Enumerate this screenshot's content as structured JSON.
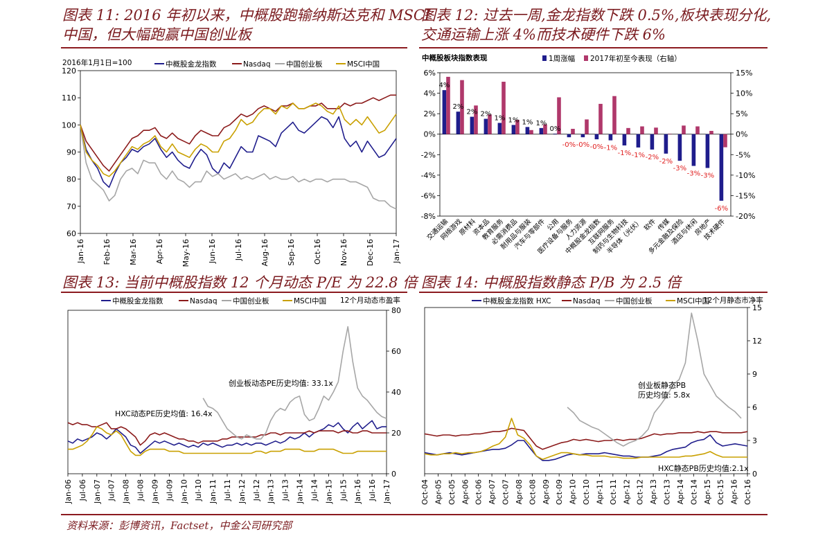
{
  "titles": {
    "fig11_l1": "图表 11: 2016 年初以来，中概股跑输纳斯达克和 MSCI",
    "fig11_l2": "中国，但大幅跑赢中国创业板",
    "fig12_l1": "图表 12: 过去一周,金龙指数下跌 0.5%,板块表现分化,",
    "fig12_l2": "交通运输上涨 4%而技术硬件下跌 6%",
    "fig13": "图表 13: 当前中概股指数 12 个月动态 P/E 为 22.8 倍",
    "fig14": "图表 14: 中概股指数静态 P/B 为 2.5 倍"
  },
  "footer": "资料来源：彭博资讯，Factset，中金公司研究部",
  "colors": {
    "hxc": "#1f1d8c",
    "nasdaq": "#8b1a1a",
    "chinext": "#a6a6a6",
    "msci": "#c9a000",
    "bar_week": "#1f1d8c",
    "bar_ytd": "#b0386b",
    "neg_label": "#e02020"
  },
  "chart_data": [
    {
      "id": "fig11",
      "type": "line",
      "note": "2016年1月1日=100",
      "ylim": [
        60,
        120
      ],
      "yticks": [
        "120",
        "110",
        "100",
        "90",
        "80",
        "70",
        "60"
      ],
      "xticks": [
        "Jan-16",
        "Feb-16",
        "Mar-16",
        "Apr-16",
        "May-16",
        "Jun-16",
        "Jul-16",
        "Aug-16",
        "Sep-16",
        "Oct-16",
        "Nov-16",
        "Dec-16",
        "Jan-17"
      ],
      "x_count": 56,
      "series": [
        {
          "key": "hxc",
          "name": "中概股金龙指数",
          "values": [
            100,
            91,
            87,
            84,
            79,
            77,
            82,
            86,
            88,
            91,
            90,
            92,
            93,
            95,
            91,
            88,
            90,
            87,
            85,
            84,
            88,
            91,
            89,
            84,
            82,
            86,
            84,
            88,
            92,
            90,
            90,
            96,
            95,
            94,
            92,
            97,
            99,
            101,
            98,
            97,
            99,
            101,
            103,
            102,
            99,
            103,
            95,
            92,
            94,
            90,
            94,
            91,
            88,
            89,
            92,
            95
          ]
        },
        {
          "key": "nasdaq",
          "name": "Nasdaq",
          "values": [
            100,
            94,
            91,
            88,
            85,
            83,
            86,
            89,
            92,
            95,
            96,
            98,
            98,
            99,
            96,
            95,
            97,
            95,
            94,
            93,
            96,
            98,
            97,
            96,
            96,
            99,
            100,
            102,
            104,
            103,
            104,
            106,
            107,
            106,
            105,
            107,
            107,
            108,
            106,
            106,
            107,
            107,
            108,
            106,
            106,
            106,
            108,
            107,
            108,
            108,
            109,
            110,
            109,
            110,
            111,
            111
          ]
        },
        {
          "key": "chinext",
          "name": "中国创业板",
          "values": [
            100,
            86,
            80,
            78,
            76,
            72,
            74,
            80,
            83,
            84,
            82,
            87,
            86,
            86,
            82,
            80,
            83,
            80,
            79,
            77,
            79,
            79,
            83,
            81,
            82,
            80,
            81,
            82,
            80,
            81,
            80,
            81,
            82,
            80,
            81,
            80,
            80,
            81,
            79,
            80,
            79,
            80,
            80,
            79,
            80,
            80,
            80,
            79,
            79,
            78,
            77,
            73,
            72,
            72,
            70,
            69
          ]
        },
        {
          "key": "msci",
          "name": "MSCI中国",
          "values": [
            100,
            90,
            87,
            85,
            82,
            81,
            83,
            86,
            89,
            92,
            91,
            93,
            94,
            96,
            92,
            90,
            93,
            90,
            89,
            88,
            91,
            93,
            92,
            90,
            90,
            94,
            95,
            98,
            102,
            100,
            101,
            104,
            106,
            106,
            104,
            107,
            106,
            108,
            106,
            106,
            107,
            108,
            107,
            105,
            104,
            107,
            102,
            100,
            102,
            100,
            103,
            100,
            97,
            98,
            101,
            104
          ]
        }
      ]
    },
    {
      "id": "fig12",
      "type": "bar",
      "subtitle": "中概股板块指数表现",
      "legend": [
        "1周涨幅",
        "2017年初至今表现（右轴）"
      ],
      "ylim": [
        -8,
        6
      ],
      "y2lim": [
        -20,
        15
      ],
      "yticks": [
        "6%",
        "4%",
        "2%",
        "0%",
        "-2%",
        "-4%",
        "-6%",
        "-8%"
      ],
      "y2ticks": [
        "15%",
        "10%",
        "5%",
        "0%",
        "-5%",
        "-10%",
        "-15%",
        "-20%"
      ],
      "categories": [
        "交通运输",
        "网络游戏",
        "原材料",
        "资本品",
        "教育服务",
        "必需消费品",
        "耐用品与服装",
        "汽车与零部件",
        "公用",
        "医疗设备与服务",
        "人力资源",
        "中概股金龙指数",
        "互联网服务",
        "制药与生物科技",
        "半导体（光伏）",
        "软件",
        "传媒",
        "多元金融及保险",
        "酒店与休闲",
        "房地产",
        "技术硬件"
      ],
      "week": [
        4.3,
        2.2,
        1.7,
        1.5,
        1.1,
        0.9,
        0.7,
        0.6,
        0.05,
        -0.3,
        -0.3,
        -0.5,
        -0.6,
        -1.1,
        -1.3,
        -1.5,
        -1.9,
        -2.6,
        -3.1,
        -3.3,
        -6.5
      ],
      "week_labels": [
        "4%",
        "2%",
        "2%",
        "2%",
        "1%",
        "1%",
        "1%",
        "1%",
        "0%",
        "-0%",
        "-0%",
        "-0%",
        "-1%",
        "-1%",
        "-1%",
        "-2%",
        "-2%",
        "-3%",
        "-3%",
        "-3%",
        "-6%"
      ],
      "ytd": [
        14,
        13.2,
        7,
        4.8,
        12.8,
        3.5,
        1,
        2.4,
        9,
        1.3,
        3.6,
        7.4,
        9.3,
        1.5,
        1.9,
        1.6,
        0.1,
        2.1,
        1.9,
        0.8,
        -3.2
      ]
    },
    {
      "id": "fig13",
      "type": "line",
      "right_label": "12个月动态市盈率",
      "ylim": [
        0,
        80
      ],
      "yticks": [
        "80",
        "60",
        "40",
        "20",
        "0"
      ],
      "xticks": [
        "Jan-06",
        "Jul-06",
        "Jan-07",
        "Jul-07",
        "Jan-08",
        "Jul-08",
        "Jan-09",
        "Jul-09",
        "Jan-10",
        "Jul-10",
        "Jan-11",
        "Jul-11",
        "Jan-12",
        "Jul-12",
        "Jan-13",
        "Jul-13",
        "Jan-14",
        "Jul-14",
        "Jan-15",
        "Jul-15",
        "Jan-16",
        "Jul-16",
        "Jan-17"
      ],
      "annotations": [
        "创业板动态PE历史均值: 33.1x",
        "HXC动态PE历史均值: 16.4x"
      ],
      "series": [
        {
          "key": "hxc",
          "name": "中概股金龙指数",
          "start": 0,
          "values": [
            16,
            15,
            17,
            16,
            17,
            18,
            20,
            19,
            17,
            19,
            22,
            20,
            18,
            14,
            13,
            10,
            12,
            14,
            16,
            15,
            16,
            15,
            14,
            15,
            14,
            13,
            14,
            13,
            15,
            14,
            15,
            14,
            13,
            14,
            14,
            15,
            14,
            15,
            14,
            15,
            15,
            14,
            15,
            16,
            15,
            16,
            18,
            17,
            18,
            20,
            18,
            20,
            21,
            22,
            24,
            23,
            25,
            22,
            20,
            23,
            25,
            22,
            24,
            26,
            22,
            23,
            23
          ]
        },
        {
          "key": "nasdaq",
          "name": "Nasdaq",
          "start": 0,
          "values": [
            25,
            24,
            25,
            24,
            24,
            23,
            23,
            24,
            25,
            22,
            22,
            23,
            22,
            20,
            18,
            14,
            16,
            19,
            20,
            19,
            20,
            19,
            18,
            17,
            17,
            16,
            16,
            15,
            16,
            16,
            16,
            16,
            17,
            17,
            18,
            18,
            18,
            18,
            18,
            18,
            19,
            19,
            20,
            20,
            19,
            20,
            20,
            20,
            20,
            20,
            21,
            20,
            21,
            21,
            21,
            21,
            20,
            21,
            21,
            20,
            20,
            21,
            21,
            20,
            20,
            20,
            20
          ]
        },
        {
          "key": "chinext",
          "name": "中国创业板",
          "start": 28,
          "values": [
            37,
            33,
            32,
            30,
            26,
            22,
            20,
            18,
            17,
            19,
            18,
            17,
            17,
            20,
            26,
            30,
            32,
            31,
            35,
            37,
            38,
            29,
            26,
            27,
            32,
            38,
            36,
            40,
            45,
            60,
            72,
            55,
            42,
            38,
            36,
            33,
            30,
            28,
            27
          ]
        },
        {
          "key": "msci",
          "name": "MSCI中国",
          "start": 0,
          "values": [
            12,
            12,
            13,
            14,
            16,
            19,
            23,
            22,
            20,
            19,
            21,
            19,
            15,
            11,
            9,
            9,
            11,
            12,
            12,
            12,
            12,
            11,
            11,
            11,
            10,
            10,
            10,
            10,
            10,
            10,
            10,
            10,
            10,
            10,
            10,
            10,
            10,
            10,
            10,
            11,
            11,
            10,
            11,
            11,
            11,
            12,
            12,
            12,
            12,
            11,
            11,
            11,
            12,
            12,
            12,
            12,
            11,
            10,
            10,
            10,
            11,
            11,
            11,
            11,
            11,
            11,
            11
          ]
        }
      ]
    },
    {
      "id": "fig14",
      "type": "line",
      "right_label": "12个月静态市净率",
      "ylim": [
        0,
        15
      ],
      "yticks": [
        "15",
        "12",
        "9",
        "6",
        "3",
        "0"
      ],
      "xticks": [
        "Oct-04",
        "Apr-05",
        "Oct-05",
        "Apr-06",
        "Oct-06",
        "Apr-07",
        "Oct-07",
        "Apr-08",
        "Oct-08",
        "Apr-09",
        "Oct-09",
        "Apr-10",
        "Oct-10",
        "Apr-11",
        "Oct-11",
        "Apr-12",
        "Oct-12",
        "Apr-13",
        "Oct-13",
        "Apr-14",
        "Oct-14",
        "Apr-15",
        "Oct-15",
        "Apr-16",
        "Oct-16"
      ],
      "annotations": [
        "创业板静态PB",
        "历史均值: 5.8x",
        "HXC静态PB历史均值:2.1x"
      ],
      "series": [
        {
          "key": "hxc",
          "name": "中概股金龙指数 HXC",
          "start": 0,
          "values": [
            1.9,
            1.8,
            1.7,
            1.8,
            1.9,
            1.8,
            1.7,
            1.8,
            1.9,
            2,
            2.1,
            2.2,
            2.2,
            2.3,
            2.6,
            3,
            3,
            2.3,
            1.6,
            1.2,
            1.2,
            1.3,
            1.5,
            1.7,
            1.8,
            1.7,
            1.8,
            1.8,
            1.8,
            1.9,
            1.8,
            1.7,
            1.6,
            1.6,
            1.5,
            1.5,
            1.5,
            1.6,
            1.7,
            2,
            2.2,
            2.3,
            2.4,
            2.8,
            3,
            3.1,
            3.5,
            2.8,
            2.5,
            2.6,
            2.7,
            2.6,
            2.5
          ]
        },
        {
          "key": "nasdaq",
          "name": "Nasdaq",
          "start": 0,
          "values": [
            3.6,
            3.5,
            3.4,
            3.5,
            3.5,
            3.4,
            3.5,
            3.5,
            3.6,
            3.6,
            3.7,
            3.8,
            3.8,
            3.9,
            4.1,
            4,
            3.9,
            3.2,
            2.5,
            2.2,
            2.4,
            2.6,
            2.8,
            2.9,
            3.1,
            3,
            3.1,
            3,
            2.9,
            3,
            3,
            3.1,
            3,
            3.1,
            3.1,
            3.2,
            3.4,
            3.6,
            3.5,
            3.6,
            3.6,
            3.7,
            3.7,
            3.7,
            3.8,
            3.7,
            3.8,
            3.8,
            3.7,
            3.7,
            3.7,
            3.7,
            3.8
          ]
        },
        {
          "key": "chinext",
          "name": "中国创业板",
          "start": 23,
          "values": [
            6,
            5.5,
            4.8,
            4.5,
            4.2,
            4,
            3.6,
            3.2,
            2.8,
            2.5,
            2.8,
            3,
            3.4,
            4,
            5.5,
            6.2,
            7,
            8,
            8.5,
            10,
            14.5,
            12,
            9,
            8,
            7,
            6.5,
            6,
            5.6,
            5
          ]
        },
        {
          "key": "msci",
          "name": "MSCI中国",
          "start": 0,
          "values": [
            1.8,
            1.7,
            1.7,
            1.8,
            1.8,
            1.9,
            1.8,
            1.9,
            1.9,
            2,
            2.2,
            2.5,
            2.7,
            3.3,
            5,
            3.5,
            3.2,
            2.6,
            1.6,
            1.3,
            1.5,
            1.7,
            1.9,
            1.9,
            1.8,
            1.7,
            1.7,
            1.6,
            1.6,
            1.6,
            1.5,
            1.5,
            1.4,
            1.4,
            1.4,
            1.5,
            1.5,
            1.5,
            1.5,
            1.5,
            1.5,
            1.5,
            1.6,
            1.6,
            1.7,
            1.8,
            2,
            1.7,
            1.5,
            1.5,
            1.5,
            1.5,
            1.5
          ]
        }
      ]
    }
  ]
}
